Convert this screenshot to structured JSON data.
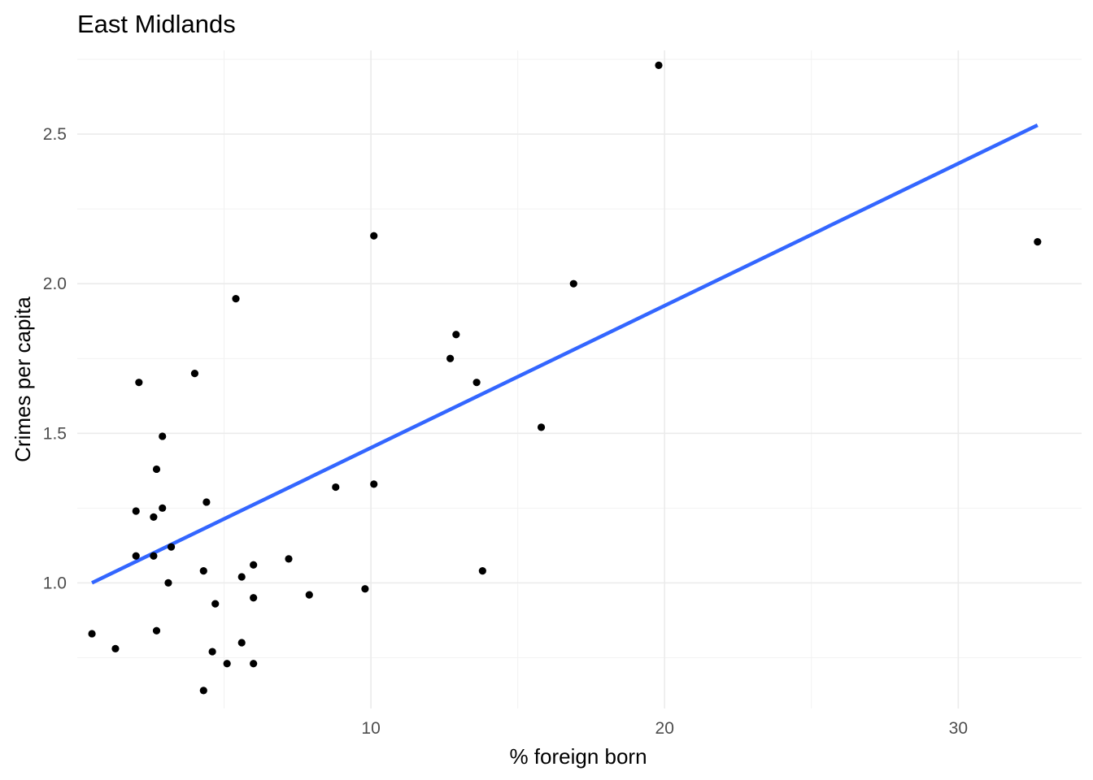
{
  "chart_data": {
    "type": "scatter",
    "title": "East Midlands",
    "xlabel": "% foreign born",
    "ylabel": "Crimes per capita",
    "xlim": [
      0.0,
      34.2
    ],
    "ylim": [
      0.58,
      2.78
    ],
    "x_ticks": [
      10,
      20,
      30
    ],
    "x_tick_labels": [
      "10",
      "20",
      "30"
    ],
    "x_minor_ticks": [
      5,
      15,
      25
    ],
    "y_ticks": [
      1.0,
      1.5,
      2.0,
      2.5
    ],
    "y_tick_labels": [
      "1.0",
      "1.5",
      "2.0",
      "2.5"
    ],
    "y_minor_ticks": [
      0.75,
      1.25,
      1.75,
      2.25,
      2.75
    ],
    "grid": true,
    "points": [
      {
        "x": 19.8,
        "y": 2.73
      },
      {
        "x": 10.1,
        "y": 2.16
      },
      {
        "x": 32.7,
        "y": 2.14
      },
      {
        "x": 16.9,
        "y": 2.0
      },
      {
        "x": 5.4,
        "y": 1.95
      },
      {
        "x": 12.9,
        "y": 1.83
      },
      {
        "x": 12.7,
        "y": 1.75
      },
      {
        "x": 4.0,
        "y": 1.7
      },
      {
        "x": 2.1,
        "y": 1.67
      },
      {
        "x": 13.6,
        "y": 1.67
      },
      {
        "x": 15.8,
        "y": 1.52
      },
      {
        "x": 2.9,
        "y": 1.49
      },
      {
        "x": 2.7,
        "y": 1.38
      },
      {
        "x": 8.8,
        "y": 1.32
      },
      {
        "x": 10.1,
        "y": 1.33
      },
      {
        "x": 4.4,
        "y": 1.27
      },
      {
        "x": 2.9,
        "y": 1.25
      },
      {
        "x": 2.0,
        "y": 1.24
      },
      {
        "x": 2.6,
        "y": 1.22
      },
      {
        "x": 3.2,
        "y": 1.12
      },
      {
        "x": 2.0,
        "y": 1.09
      },
      {
        "x": 2.6,
        "y": 1.09
      },
      {
        "x": 7.2,
        "y": 1.08
      },
      {
        "x": 6.0,
        "y": 1.06
      },
      {
        "x": 4.3,
        "y": 1.04
      },
      {
        "x": 13.8,
        "y": 1.04
      },
      {
        "x": 5.6,
        "y": 1.02
      },
      {
        "x": 3.1,
        "y": 1.0
      },
      {
        "x": 9.8,
        "y": 0.98
      },
      {
        "x": 7.9,
        "y": 0.96
      },
      {
        "x": 6.0,
        "y": 0.95
      },
      {
        "x": 4.7,
        "y": 0.93
      },
      {
        "x": 0.5,
        "y": 0.83
      },
      {
        "x": 2.7,
        "y": 0.84
      },
      {
        "x": 1.3,
        "y": 0.78
      },
      {
        "x": 5.6,
        "y": 0.8
      },
      {
        "x": 4.6,
        "y": 0.77
      },
      {
        "x": 5.1,
        "y": 0.73
      },
      {
        "x": 6.0,
        "y": 0.73
      },
      {
        "x": 4.3,
        "y": 0.64
      }
    ],
    "fit_line": {
      "method": "linear",
      "x": [
        0.5,
        32.7
      ],
      "y": [
        1.0,
        2.53
      ],
      "color": "#3366ff"
    }
  }
}
